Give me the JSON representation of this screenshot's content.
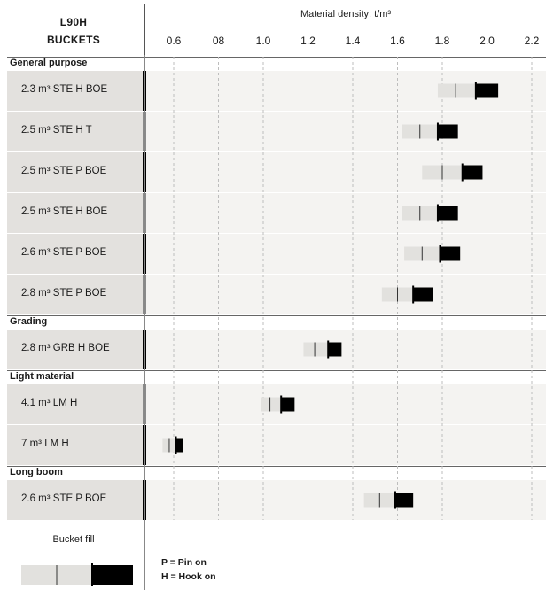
{
  "header": {
    "title_line1": "L90H",
    "title_line2": "BUCKETS",
    "axis_title": "Material density: t/m³"
  },
  "legend": {
    "title": "Bucket fill",
    "line1": "P = Pin on",
    "line2": "H = Hook on"
  },
  "colors": {
    "label_bg": "#e3e1de",
    "row_bg": "#f4f3f1",
    "bar_light": "#e2e1de",
    "bar_dark": "#000000",
    "accent_black": "#000000",
    "accent_gray": "#8a8a8a"
  },
  "chart_data": {
    "type": "bar",
    "orientation": "horizontal-range",
    "xlabel": "Material density: t/m³",
    "xlim": [
      0.5,
      2.2
    ],
    "xticks": [
      "0.6",
      "08",
      "1.0",
      "1.2",
      "1.4",
      "1.6",
      "1.8",
      "2.0",
      "2.2"
    ],
    "grid": true,
    "groups": [
      {
        "name": "General purpose",
        "rows": [
          {
            "label": "2.3 m³ STE H BOE",
            "start": 1.78,
            "mark": 1.86,
            "split": 1.95,
            "end": 2.05,
            "accent": "black"
          },
          {
            "label": "2.5 m³ STE H T",
            "start": 1.62,
            "mark": 1.7,
            "split": 1.78,
            "end": 1.87,
            "accent": "gray"
          },
          {
            "label": "2.5 m³ STE P BOE",
            "start": 1.71,
            "mark": 1.8,
            "split": 1.89,
            "end": 1.98,
            "accent": "black"
          },
          {
            "label": "2.5 m³ STE H BOE",
            "start": 1.62,
            "mark": 1.7,
            "split": 1.78,
            "end": 1.87,
            "accent": "gray"
          },
          {
            "label": "2.6 m³ STE P BOE",
            "start": 1.63,
            "mark": 1.71,
            "split": 1.79,
            "end": 1.88,
            "accent": "black"
          },
          {
            "label": "2.8 m³ STE P BOE",
            "start": 1.53,
            "mark": 1.6,
            "split": 1.67,
            "end": 1.76,
            "accent": "gray"
          }
        ]
      },
      {
        "name": "Grading",
        "rows": [
          {
            "label": "2.8 m³ GRB H BOE",
            "start": 1.18,
            "mark": 1.23,
            "split": 1.29,
            "end": 1.35,
            "accent": "black"
          }
        ]
      },
      {
        "name": "Light material",
        "rows": [
          {
            "label": "4.1 m³ LM H",
            "start": 0.99,
            "mark": 1.03,
            "split": 1.08,
            "end": 1.14,
            "accent": "gray"
          },
          {
            "label": "7 m³ LM H",
            "start": 0.55,
            "mark": 0.58,
            "split": 0.61,
            "end": 0.64,
            "accent": "black"
          }
        ]
      },
      {
        "name": "Long boom",
        "rows": [
          {
            "label": "2.6 m³ STE P BOE",
            "start": 1.45,
            "mark": 1.52,
            "split": 1.59,
            "end": 1.67,
            "accent": "black"
          }
        ]
      }
    ]
  }
}
